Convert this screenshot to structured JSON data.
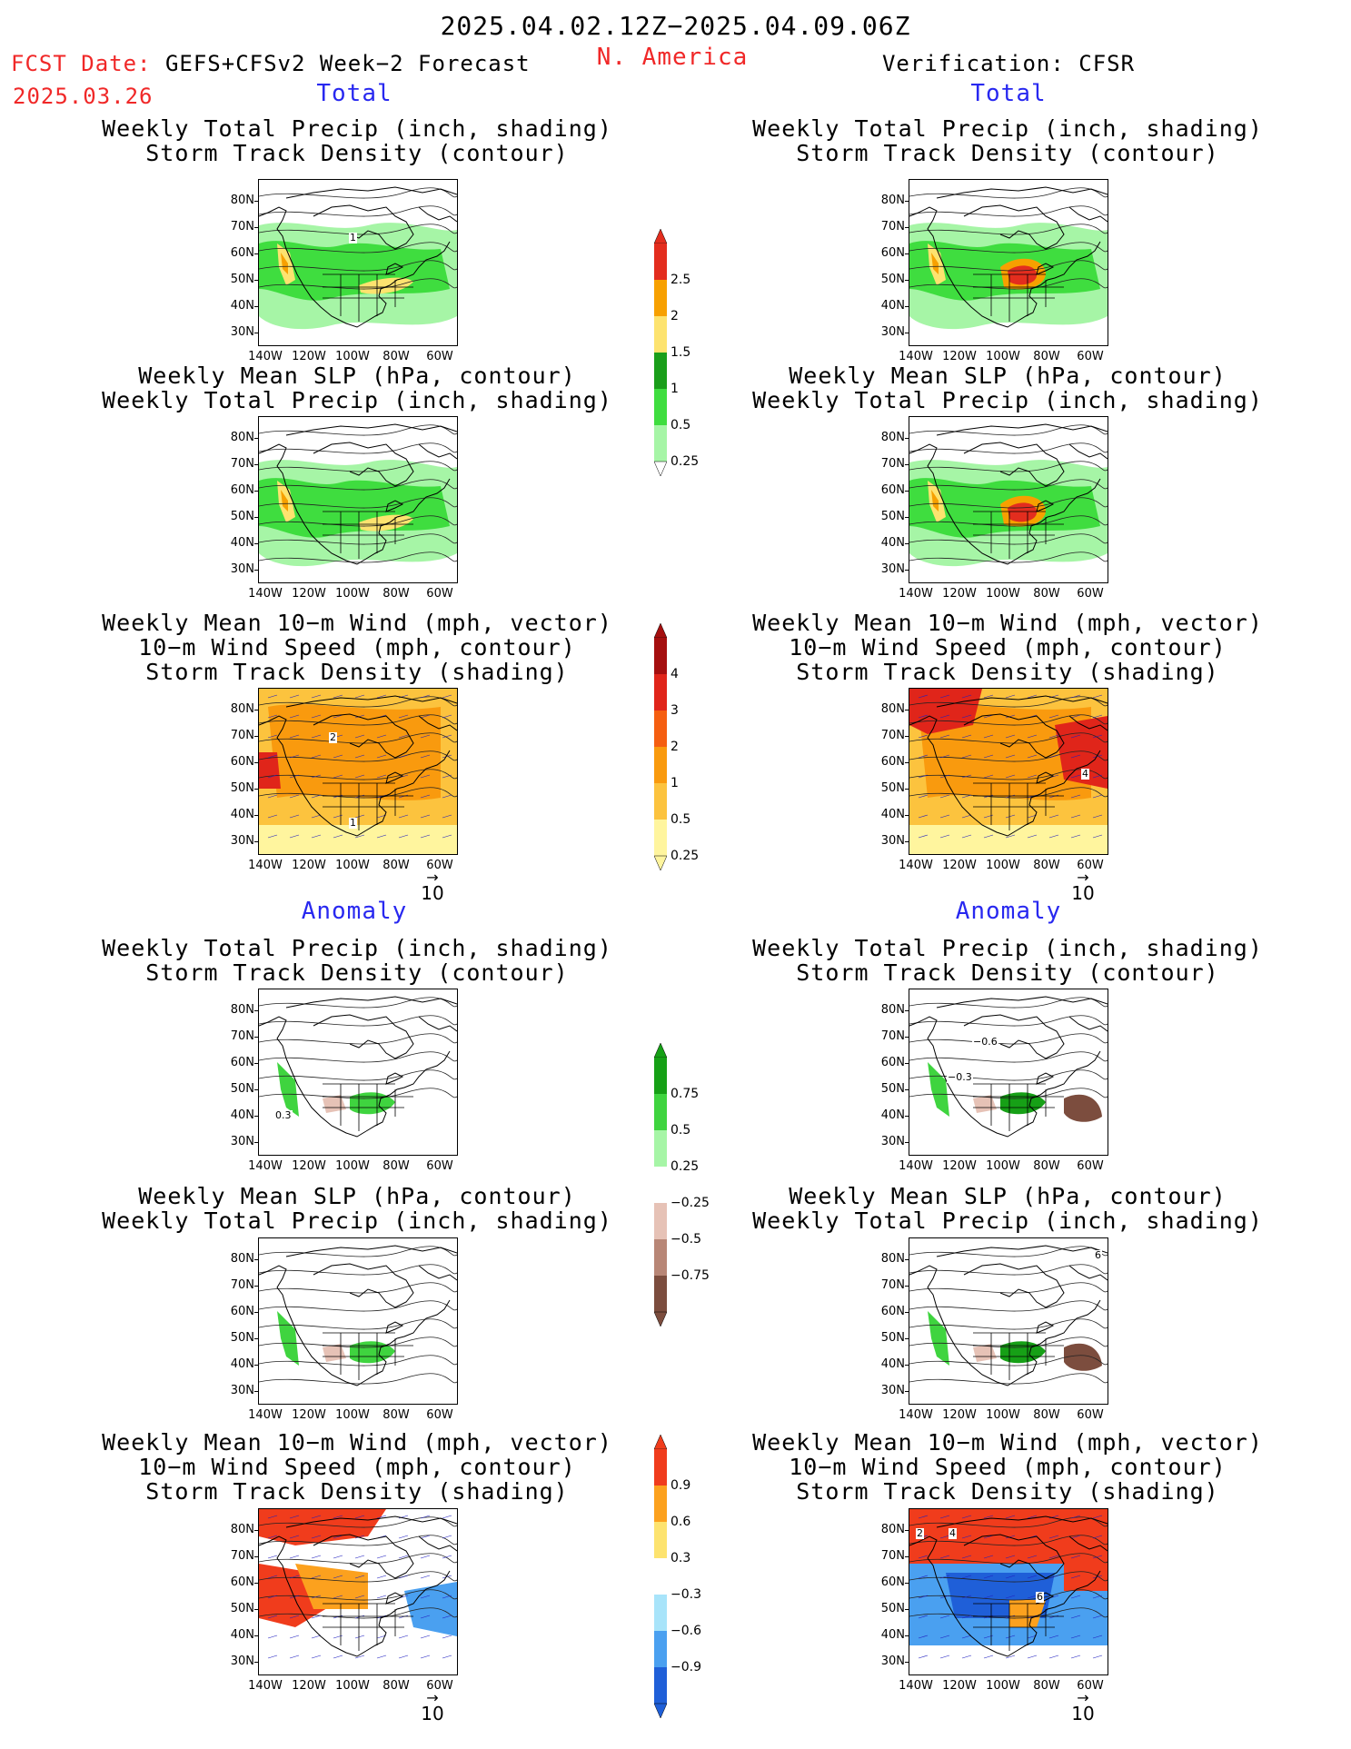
{
  "header": {
    "period": "2025.04.02.12Z−2025.04.09.06Z",
    "fcst_label": "FCST Date: GEFS+CFSv2 Week−2 Forecast",
    "fcst_date": "2025.03.26",
    "region": "N. America",
    "verification": "Verification: CFSR"
  },
  "sections": {
    "total": "Total",
    "anomaly": "Anomaly"
  },
  "titles": {
    "precip_track": [
      "Weekly Total Precip (inch, shading)",
      "Storm Track Density (contour)"
    ],
    "slp_precip": [
      "Weekly Mean SLP (hPa, contour)",
      "Weekly Total Precip (inch, shading)"
    ],
    "wind_track": [
      "Weekly Mean 10−m Wind (mph, vector)",
      "10−m Wind Speed (mph, contour)",
      "Storm Track Density (shading)"
    ]
  },
  "axes": {
    "lat_ticks": [
      "80N",
      "70N",
      "60N",
      "50N",
      "40N",
      "30N"
    ],
    "lon_ticks": [
      "140W",
      "120W",
      "100W",
      "80W",
      "60W"
    ]
  },
  "vector_reference": "10",
  "colorbars": {
    "precip_total": {
      "labels": [
        "2.5",
        "2",
        "1.5",
        "1",
        "0.5",
        "0.25"
      ],
      "colors": [
        "#e32d1e",
        "#f7a000",
        "#fde36f",
        "#1a9e1a",
        "#3fdd3f",
        "#a6f5a6"
      ]
    },
    "track_total": {
      "labels": [
        "4",
        "3",
        "2",
        "1",
        "0.5",
        "0.25"
      ],
      "colors": [
        "#a50f0f",
        "#e0251a",
        "#f55e10",
        "#f99a0e",
        "#fcc33e",
        "#fff59e"
      ]
    },
    "precip_anom": {
      "labels": [
        "0.75",
        "0.5",
        "0.25",
        "−0.25",
        "−0.5",
        "−0.75"
      ],
      "colors": [
        "#16a016",
        "#3fd43f",
        "#a6f5a6",
        "#ffffff",
        "#e6c2b6",
        "#b88676",
        "#7c4d3e"
      ]
    },
    "track_anom": {
      "labels": [
        "0.9",
        "0.6",
        "0.3",
        "−0.3",
        "−0.6",
        "−0.9"
      ],
      "colors": [
        "#f03c1c",
        "#fca11e",
        "#fde36f",
        "#ffffff",
        "#a8e4fa",
        "#4aa0f0",
        "#1f5fd8"
      ]
    }
  },
  "contour_labels": {
    "track_left": "1",
    "wind_left_a": "2",
    "wind_left_b": "1",
    "wind_right": "4",
    "anom_left": "0.3",
    "anom_right_a": "−0.6",
    "anom_right_b": "−0.3",
    "anom_slp_right": "6",
    "anom_wind_right_a": "2",
    "anom_wind_right_b": "4",
    "anom_wind_right_c": "6"
  }
}
